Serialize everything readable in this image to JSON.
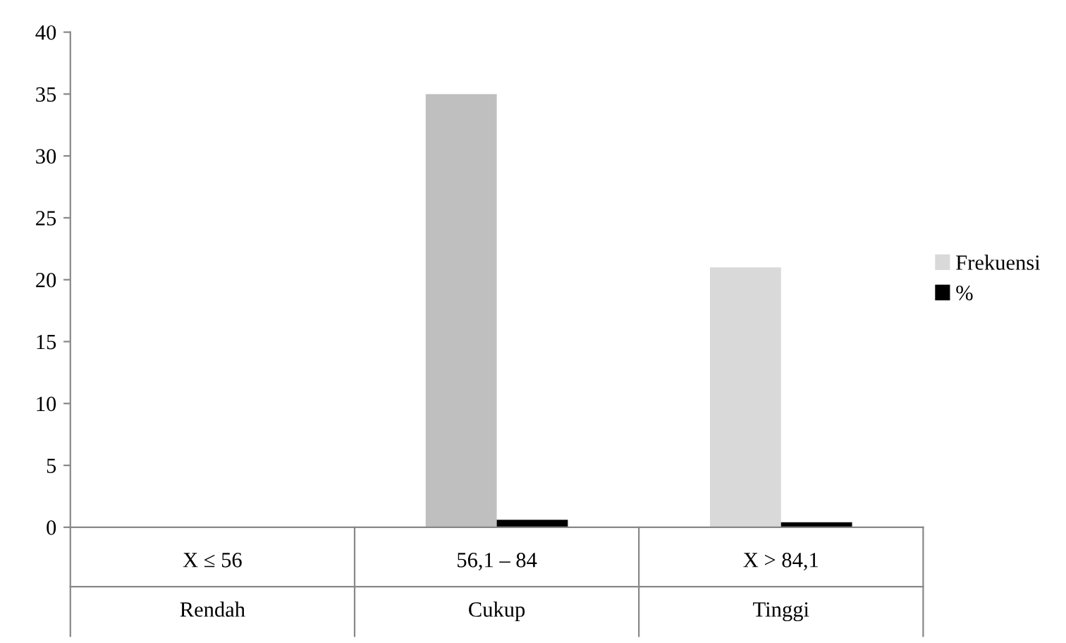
{
  "chart_data": {
    "type": "bar",
    "categories": [
      "X ≤ 56\nRendah",
      "56,1 – 84\nCukup",
      "X > 84,1\nTinggi"
    ],
    "series": [
      {
        "name": "Frekuensi",
        "colors": [
          "#d9d9d9",
          "#bfbfbf",
          "#d9d9d9"
        ],
        "values": [
          0,
          35,
          21
        ]
      },
      {
        "name": "%",
        "color": "#000000",
        "values": [
          0,
          0.6,
          0.4
        ]
      }
    ],
    "ylim": [
      0,
      40
    ],
    "yticks": [
      0,
      5,
      10,
      15,
      20,
      25,
      30,
      35,
      40
    ],
    "grid": false,
    "legend": "right"
  }
}
